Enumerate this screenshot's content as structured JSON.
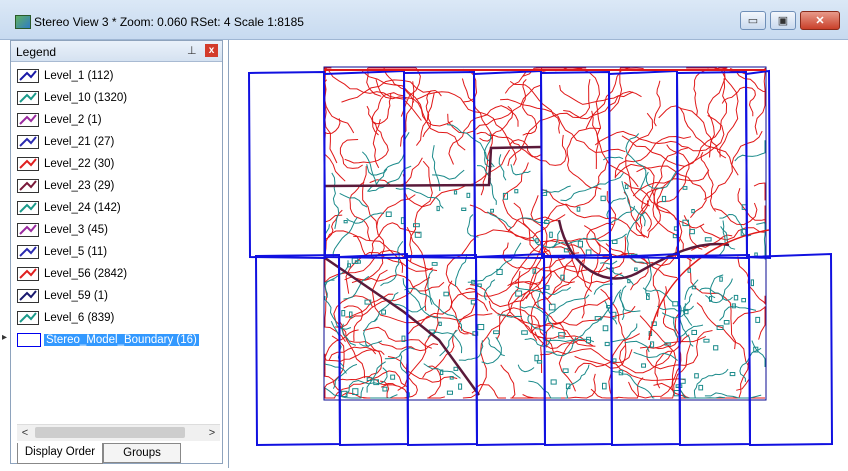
{
  "window": {
    "title": "Stereo View 3 *  Zoom: 0.060  RSet: 4  Scale 1:8185",
    "minimize_glyph": "▭",
    "maximize_glyph": "▣",
    "close_glyph": "✕"
  },
  "legend": {
    "title": "Legend",
    "pin_glyph": "⊥",
    "close_glyph": "x",
    "items": [
      {
        "label": "Level_1 (112)",
        "color": "#1a1aa8"
      },
      {
        "label": "Level_10 (1320)",
        "color": "#1a9a8a"
      },
      {
        "label": "Level_2 (1)",
        "color": "#9a2aa0"
      },
      {
        "label": "Level_21 (27)",
        "color": "#2a2ab0"
      },
      {
        "label": "Level_22 (30)",
        "color": "#e02020"
      },
      {
        "label": "Level_23 (29)",
        "color": "#7a1a3a"
      },
      {
        "label": "Level_24 (142)",
        "color": "#1a9a8a"
      },
      {
        "label": "Level_3 (45)",
        "color": "#9a2aa0"
      },
      {
        "label": "Level_5 (11)",
        "color": "#2a2ab0"
      },
      {
        "label": "Level_56 (2842)",
        "color": "#e02020"
      },
      {
        "label": "Level_59 (1)",
        "color": "#1a1a70"
      },
      {
        "label": "Level_6 (839)",
        "color": "#1a9a8a"
      },
      {
        "label": "Stereo_Model_Boundary (16)",
        "color": "#0000ee",
        "selected": true
      }
    ],
    "scroll_left": "<",
    "scroll_right": ">",
    "tabs": [
      "Display Order",
      "Groups"
    ]
  },
  "map": {
    "boundary_color": "#1010e0",
    "contour_red": "#e01818",
    "contour_teal": "#1a8a8a",
    "road_color": "#5a1a3a",
    "grid_color": "#0a0a90"
  }
}
